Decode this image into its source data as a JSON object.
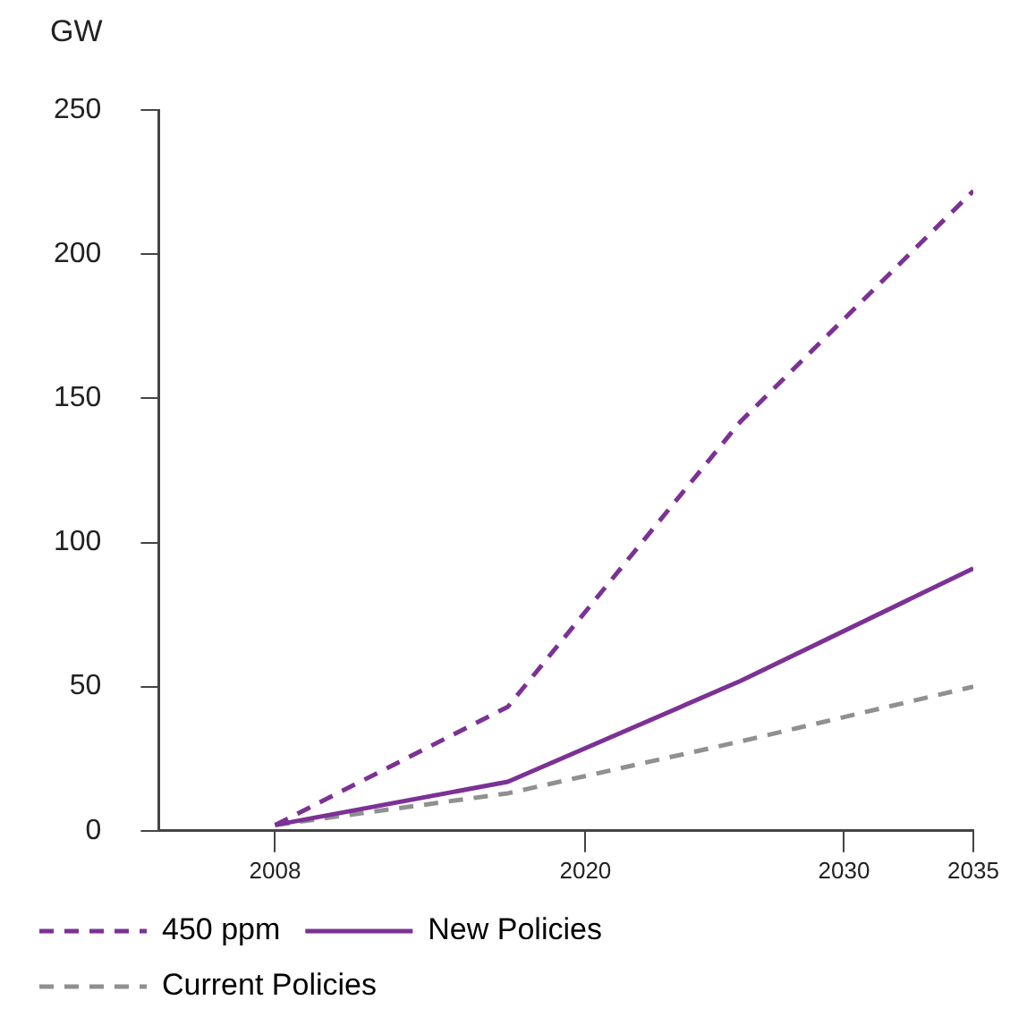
{
  "chart_data": {
    "type": "line",
    "ylabel": "GW",
    "xlim": [
      2003.5,
      2035
    ],
    "xticks": [
      2008,
      2020,
      2030,
      2035
    ],
    "ylim": [
      0,
      250
    ],
    "yticks": [
      0,
      50,
      100,
      150,
      200,
      250
    ],
    "grid": false,
    "legend": "bottom",
    "marker": "none",
    "series": [
      {
        "name": "450 ppm",
        "color": "#7b3294",
        "line_style": "dashed",
        "x": [
          2008,
          2017,
          2026,
          2035
        ],
        "values": [
          2,
          43,
          142,
          222
        ]
      },
      {
        "name": "New Policies",
        "color": "#7b3294",
        "line_style": "solid",
        "x": [
          2008,
          2017,
          2026,
          2035
        ],
        "values": [
          2,
          17,
          52,
          91
        ]
      },
      {
        "name": "Current Policies",
        "color": "#909090",
        "line_style": "dashed",
        "x": [
          2008,
          2017,
          2026,
          2035
        ],
        "values": [
          2,
          13,
          31,
          50
        ]
      }
    ]
  }
}
